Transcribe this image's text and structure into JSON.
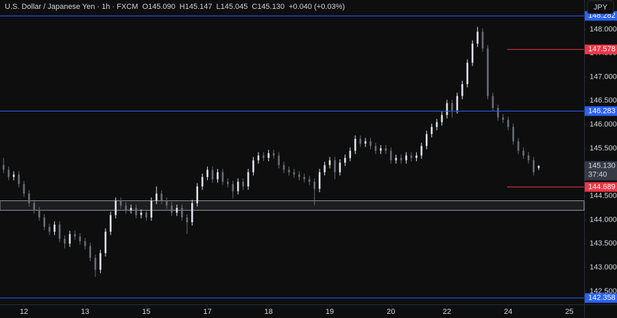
{
  "chart_data": {
    "type": "candlestick",
    "title": "U.S. Dollar / Japanese Yen · 1h · FXCM",
    "ohlc_header": [
      "O145.090",
      "H145.147",
      "L145.045",
      "C145.130",
      "+0.040 (+0.03%)"
    ],
    "currency_button": "JPY",
    "up_color": "#e0e3eb",
    "down_color": "#6a6d78",
    "ylim": [
      142.225,
      148.616
    ],
    "xlim": [
      -0.7,
      113.9
    ],
    "yticks": [
      {
        "value": 142.5,
        "label": "142.500"
      },
      {
        "value": 143,
        "label": "143.000"
      },
      {
        "value": 143.5,
        "label": "143.500"
      },
      {
        "value": 144,
        "label": "144.000"
      },
      {
        "value": 144.5,
        "label": "144.500"
      },
      {
        "value": 145,
        "label": "145.000"
      },
      {
        "value": 145.5,
        "label": "145.500"
      },
      {
        "value": 146,
        "label": "146.000"
      },
      {
        "value": 146.5,
        "label": "146.500"
      },
      {
        "value": 147,
        "label": "147.000"
      },
      {
        "value": 147.5,
        "label": "147.500"
      },
      {
        "value": 148,
        "label": "148.000"
      }
    ],
    "xticks": [
      {
        "value": 4,
        "label": "12"
      },
      {
        "value": 16,
        "label": "13"
      },
      {
        "value": 28,
        "label": "15"
      },
      {
        "value": 40,
        "label": "17"
      },
      {
        "value": 52,
        "label": "18"
      },
      {
        "value": 64,
        "label": "19"
      },
      {
        "value": 76,
        "label": "20"
      },
      {
        "value": 87,
        "label": "22"
      },
      {
        "value": 99,
        "label": "24"
      },
      {
        "value": 111,
        "label": "25"
      }
    ],
    "levels": [
      {
        "value": 148.282,
        "color": "#2962ff",
        "from": -0.7
      },
      {
        "value": 147.578,
        "color": "#f23645",
        "from": 98.8
      },
      {
        "value": 146.283,
        "color": "#2962ff",
        "from": -0.7
      },
      {
        "value": 144.689,
        "color": "#f23645",
        "from": 98.8
      },
      {
        "value": 142.358,
        "color": "#2962ff",
        "from": -0.7
      }
    ],
    "zone": [
      144.2,
      144.4
    ],
    "last_price": {
      "value": 145.13,
      "label": "145.130"
    },
    "countdown": "37:40",
    "candles": [
      [
        145.15,
        145.3,
        144.98,
        145.05
      ],
      [
        145.05,
        145.12,
        144.83,
        144.9
      ],
      [
        144.9,
        145.02,
        144.83,
        144.95
      ],
      [
        144.95,
        145.02,
        144.68,
        144.75
      ],
      [
        144.75,
        144.82,
        144.48,
        144.55
      ],
      [
        144.55,
        144.62,
        144.28,
        144.35
      ],
      [
        144.35,
        144.42,
        144.13,
        144.2
      ],
      [
        144.2,
        144.27,
        143.98,
        144.05
      ],
      [
        144.05,
        144.12,
        143.78,
        143.85
      ],
      [
        143.85,
        143.92,
        143.68,
        143.75
      ],
      [
        143.75,
        143.97,
        143.68,
        143.9
      ],
      [
        143.9,
        143.97,
        143.53,
        143.6
      ],
      [
        143.6,
        143.67,
        143.4,
        143.5
      ],
      [
        143.5,
        143.77,
        143.43,
        143.7
      ],
      [
        143.7,
        143.77,
        143.58,
        143.65
      ],
      [
        143.65,
        143.72,
        143.48,
        143.55
      ],
      [
        143.55,
        143.62,
        143.38,
        143.45
      ],
      [
        143.45,
        143.52,
        143.13,
        143.2
      ],
      [
        143.2,
        143.27,
        142.8,
        142.95
      ],
      [
        142.95,
        143.37,
        142.88,
        143.3
      ],
      [
        143.3,
        143.82,
        143.23,
        143.75
      ],
      [
        143.75,
        144.17,
        143.68,
        144.1
      ],
      [
        144.1,
        144.47,
        144.03,
        144.4
      ],
      [
        144.4,
        144.47,
        144.23,
        144.3
      ],
      [
        144.3,
        144.37,
        144.13,
        144.2
      ],
      [
        144.2,
        144.32,
        144.13,
        144.25
      ],
      [
        144.25,
        144.32,
        144.03,
        144.1
      ],
      [
        144.1,
        144.22,
        144.03,
        144.15
      ],
      [
        144.15,
        144.22,
        143.98,
        144.05
      ],
      [
        144.05,
        144.47,
        143.98,
        144.4
      ],
      [
        144.4,
        144.7,
        144.33,
        144.55
      ],
      [
        144.55,
        144.62,
        144.33,
        144.4
      ],
      [
        144.4,
        144.47,
        144.23,
        144.3
      ],
      [
        144.3,
        144.37,
        144.08,
        144.15
      ],
      [
        144.15,
        144.32,
        144.08,
        144.25
      ],
      [
        144.25,
        144.32,
        143.98,
        144.05
      ],
      [
        144.05,
        144.12,
        143.7,
        143.95
      ],
      [
        143.95,
        144.42,
        143.88,
        144.35
      ],
      [
        144.35,
        144.77,
        144.28,
        144.7
      ],
      [
        144.7,
        144.97,
        144.63,
        144.9
      ],
      [
        144.9,
        145.12,
        144.83,
        145.05
      ],
      [
        145.05,
        145.12,
        144.78,
        144.85
      ],
      [
        144.85,
        145.07,
        144.78,
        145.0
      ],
      [
        145.0,
        145.07,
        144.73,
        144.8
      ],
      [
        144.8,
        144.87,
        144.68,
        144.75
      ],
      [
        144.75,
        144.82,
        144.45,
        144.6
      ],
      [
        144.6,
        144.87,
        144.53,
        144.8
      ],
      [
        144.8,
        144.87,
        144.63,
        144.7
      ],
      [
        144.7,
        145.07,
        144.63,
        145.0
      ],
      [
        145.0,
        145.32,
        144.93,
        145.25
      ],
      [
        145.25,
        145.42,
        145.18,
        145.35
      ],
      [
        145.35,
        145.42,
        145.23,
        145.3
      ],
      [
        145.3,
        145.47,
        145.23,
        145.4
      ],
      [
        145.4,
        145.47,
        145.28,
        145.35
      ],
      [
        145.35,
        145.42,
        145.08,
        145.15
      ],
      [
        145.15,
        145.22,
        144.98,
        145.05
      ],
      [
        145.05,
        145.12,
        144.93,
        145.0
      ],
      [
        145.0,
        145.07,
        144.88,
        144.95
      ],
      [
        144.95,
        145.02,
        144.83,
        144.9
      ],
      [
        144.9,
        144.97,
        144.78,
        144.85
      ],
      [
        144.85,
        144.92,
        144.73,
        144.8
      ],
      [
        144.8,
        144.87,
        144.3,
        144.65
      ],
      [
        144.65,
        145.07,
        144.58,
        145.0
      ],
      [
        145.0,
        145.22,
        144.93,
        145.15
      ],
      [
        145.15,
        145.32,
        145.08,
        145.25
      ],
      [
        145.25,
        145.32,
        144.85,
        145.0
      ],
      [
        145.0,
        145.27,
        144.93,
        145.2
      ],
      [
        145.2,
        145.37,
        145.13,
        145.3
      ],
      [
        145.3,
        145.52,
        145.23,
        145.45
      ],
      [
        145.45,
        145.77,
        145.38,
        145.7
      ],
      [
        145.7,
        145.77,
        145.53,
        145.6
      ],
      [
        145.6,
        145.72,
        145.53,
        145.65
      ],
      [
        145.65,
        145.72,
        145.48,
        145.55
      ],
      [
        145.55,
        145.62,
        145.38,
        145.45
      ],
      [
        145.45,
        145.57,
        145.38,
        145.5
      ],
      [
        145.5,
        145.57,
        145.38,
        145.45
      ],
      [
        145.45,
        145.52,
        145.18,
        145.25
      ],
      [
        145.25,
        145.37,
        145.18,
        145.3
      ],
      [
        145.3,
        145.37,
        145.18,
        145.25
      ],
      [
        145.25,
        145.42,
        145.18,
        145.35
      ],
      [
        145.35,
        145.42,
        145.23,
        145.3
      ],
      [
        145.3,
        145.42,
        145.23,
        145.35
      ],
      [
        145.35,
        145.62,
        145.28,
        145.55
      ],
      [
        145.55,
        145.87,
        145.48,
        145.8
      ],
      [
        145.8,
        146.02,
        145.73,
        145.95
      ],
      [
        145.95,
        146.12,
        145.88,
        146.05
      ],
      [
        146.05,
        146.27,
        145.98,
        146.2
      ],
      [
        146.2,
        146.52,
        146.13,
        146.45
      ],
      [
        146.45,
        146.52,
        146.15,
        146.3
      ],
      [
        146.3,
        146.67,
        146.23,
        146.6
      ],
      [
        146.6,
        146.92,
        146.53,
        146.85
      ],
      [
        146.85,
        147.37,
        146.78,
        147.3
      ],
      [
        147.3,
        147.77,
        147.23,
        147.7
      ],
      [
        147.7,
        148.05,
        147.63,
        147.95
      ],
      [
        147.95,
        148.02,
        147.53,
        147.6
      ],
      [
        147.6,
        147.67,
        146.53,
        146.6
      ],
      [
        146.6,
        146.67,
        146.28,
        146.35
      ],
      [
        146.35,
        146.42,
        146.08,
        146.15
      ],
      [
        146.15,
        146.22,
        146.03,
        146.1
      ],
      [
        146.1,
        146.17,
        145.88,
        145.95
      ],
      [
        145.95,
        146.02,
        145.58,
        145.65
      ],
      [
        145.65,
        145.72,
        145.38,
        145.45
      ],
      [
        145.45,
        145.52,
        145.28,
        145.35
      ],
      [
        145.35,
        145.42,
        145.18,
        145.25
      ],
      [
        145.25,
        145.32,
        144.93,
        145.0
      ],
      [
        145.09,
        145.147,
        145.045,
        145.13
      ]
    ]
  }
}
